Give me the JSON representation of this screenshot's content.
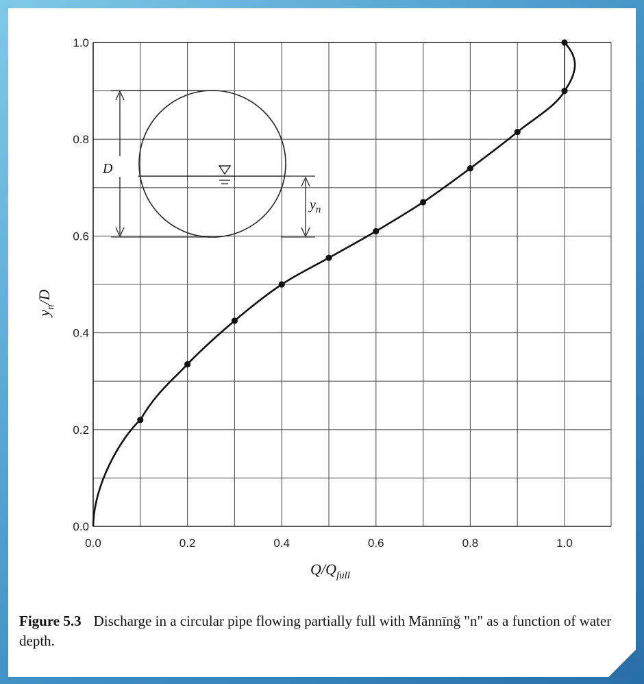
{
  "chart_data": {
    "type": "line",
    "xlabel_main": "Q/Q",
    "xlabel_sub": "full",
    "ylabel_main": "y",
    "ylabel_sub": "n",
    "ylabel_tail": "/D",
    "xlim": [
      0.0,
      1.0
    ],
    "ylim": [
      0.0,
      1.0
    ],
    "grid": true,
    "x_ticks": [
      "0.0",
      "0.2",
      "0.4",
      "0.6",
      "0.8",
      "1.0"
    ],
    "y_ticks": [
      "0.0",
      "0.2",
      "0.4",
      "0.6",
      "0.8",
      "1.0"
    ],
    "x": [
      0.0,
      0.1,
      0.2,
      0.3,
      0.4,
      0.5,
      0.6,
      0.7,
      0.8,
      0.9,
      1.0,
      1.0
    ],
    "y": [
      0.0,
      0.22,
      0.335,
      0.425,
      0.5,
      0.555,
      0.61,
      0.67,
      0.74,
      0.815,
      0.9,
      1.0
    ],
    "inset": {
      "diameter_label": "D",
      "depth_label_main": "y",
      "depth_label_sub": "n"
    }
  },
  "caption": {
    "figure_label": "Figure 5.3",
    "text": "Discharge in a circular pipe flowing partially full with Mānnīnğ \"n\" as a function of water depth."
  }
}
